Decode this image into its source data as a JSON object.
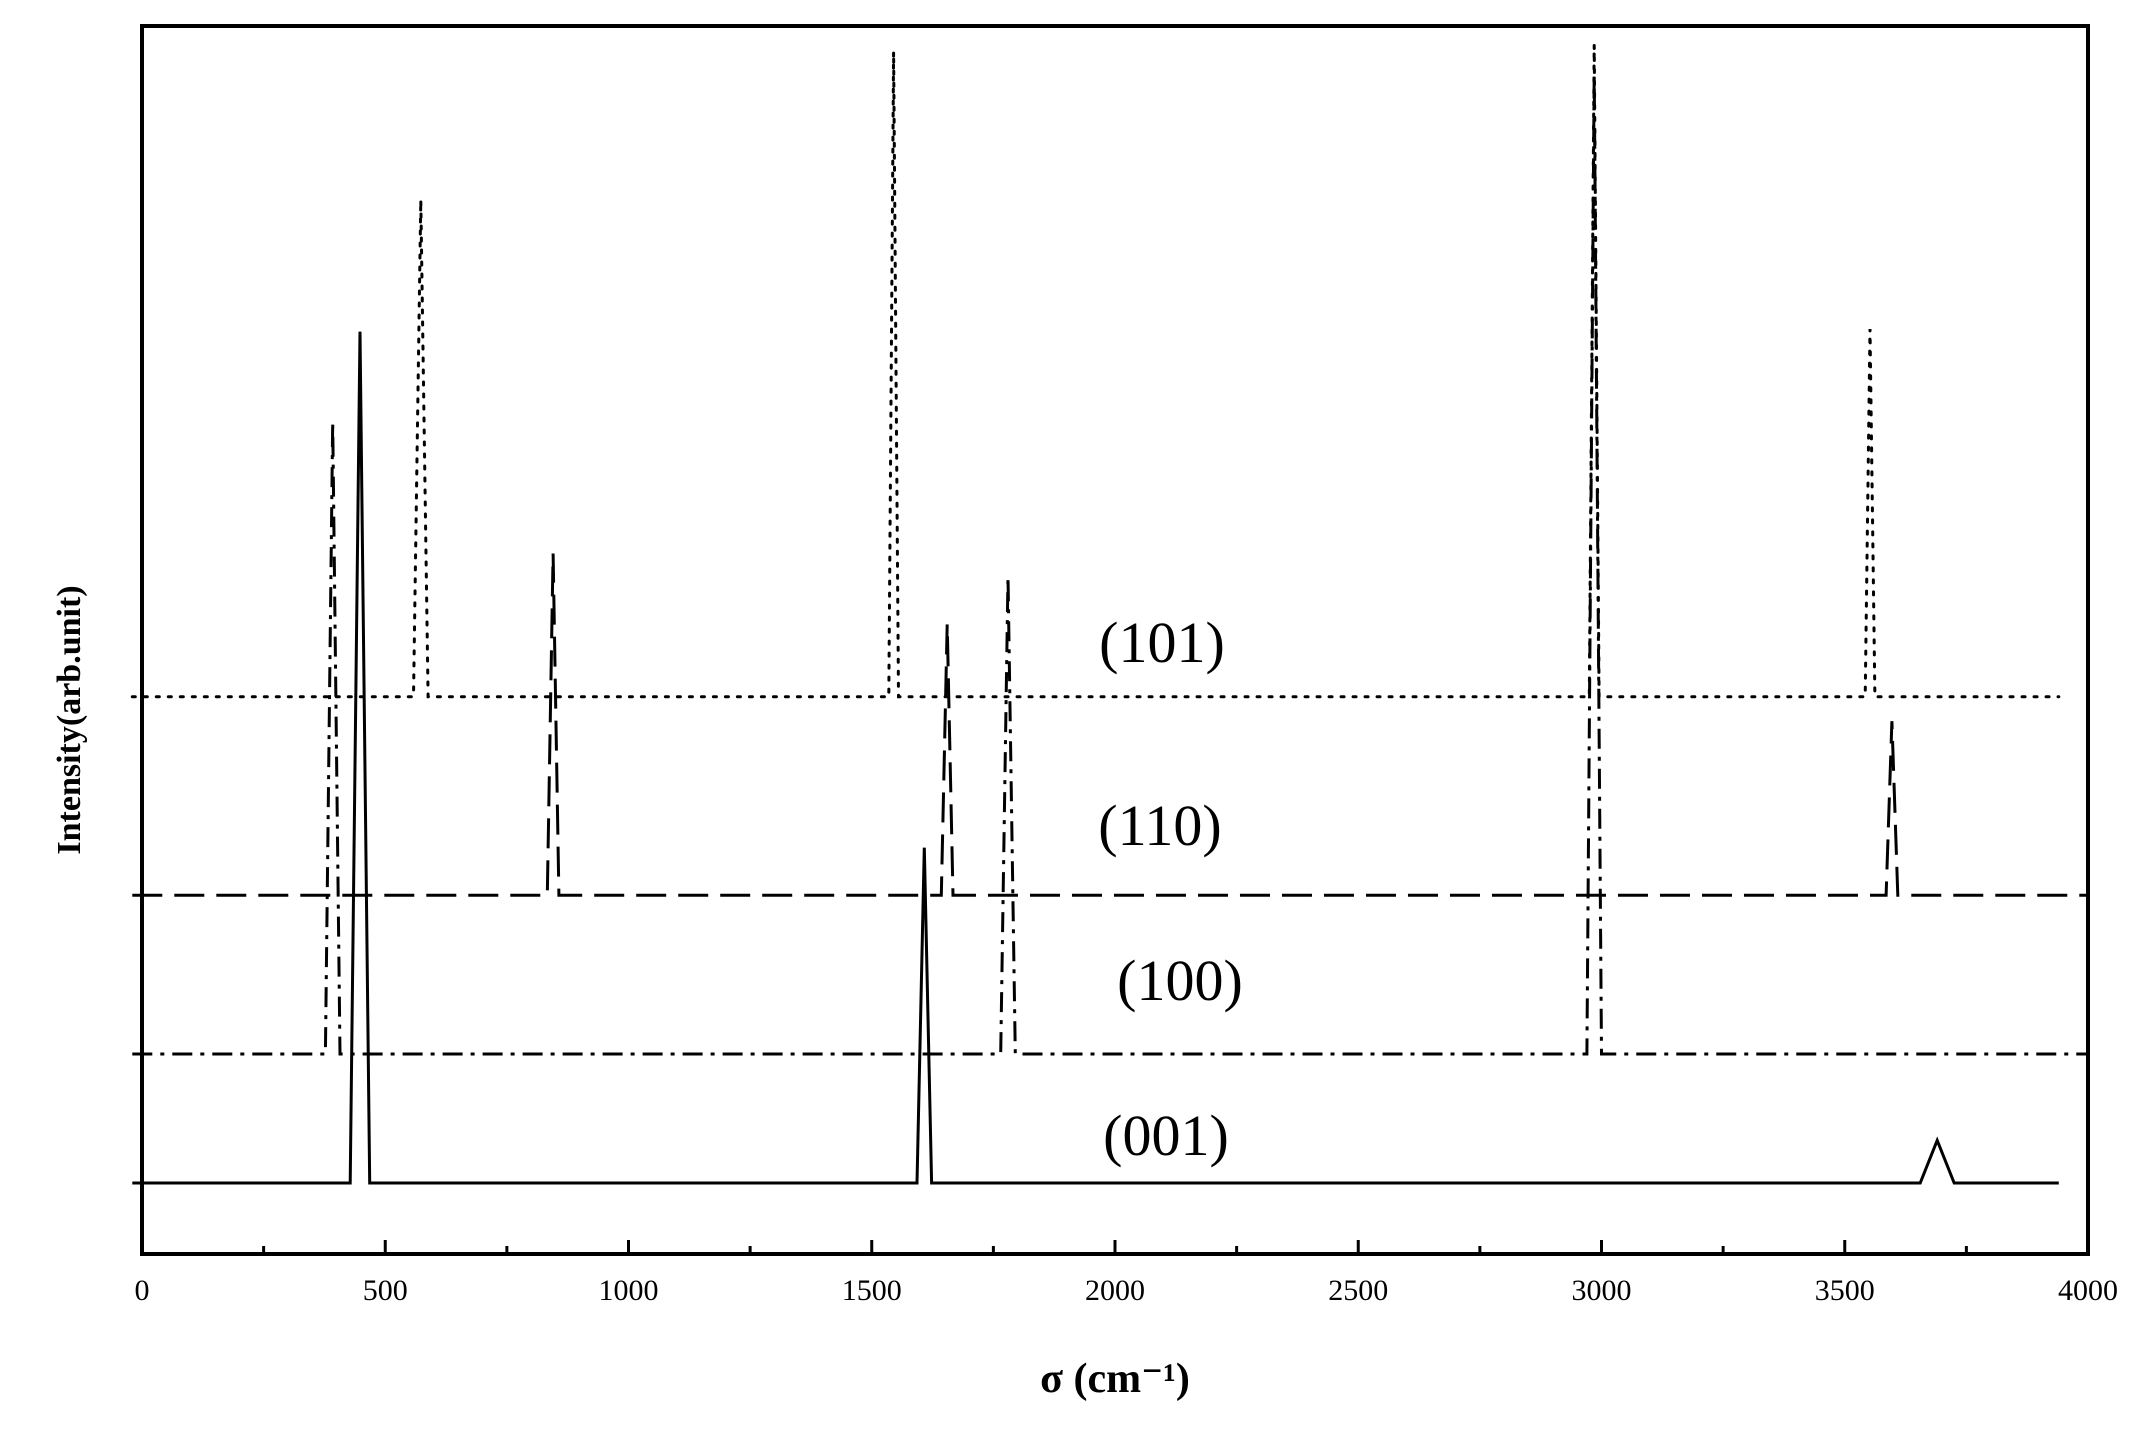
{
  "chart_data": {
    "type": "line",
    "title": "",
    "xlabel": "σ (cm⁻¹)",
    "ylabel": "Intensity(arb.unit)",
    "xlim": [
      0,
      4000
    ],
    "x_ticks": [
      0,
      500,
      1000,
      1500,
      2000,
      2500,
      3000,
      3500,
      4000
    ],
    "x_minor_step": 250,
    "y_axis_ticks": false,
    "grid": false,
    "legend": "none",
    "series": [
      {
        "name": "(001)",
        "style": "solid",
        "baseline": 0.0,
        "x_end": 3940,
        "peaks": [
          {
            "x": 448,
            "height": 6.6,
            "half_width": 20
          },
          {
            "x": 1608,
            "height": 2.6,
            "half_width": 15
          },
          {
            "x": 3690,
            "height": 0.33,
            "half_width": 35
          }
        ]
      },
      {
        "name": "(100)",
        "style": "dashdot",
        "baseline": 1.0,
        "x_end": 4000,
        "peaks": [
          {
            "x": 392,
            "height": 4.9,
            "half_width": 15
          },
          {
            "x": 1780,
            "height": 3.7,
            "half_width": 15
          },
          {
            "x": 2985,
            "height": 7.6,
            "half_width": 15
          }
        ]
      },
      {
        "name": "(110)",
        "style": "dashed",
        "baseline": 2.23,
        "x_end": 4000,
        "peaks": [
          {
            "x": 845,
            "height": 2.65,
            "half_width": 12
          },
          {
            "x": 1655,
            "height": 2.1,
            "half_width": 12
          },
          {
            "x": 3597,
            "height": 1.35,
            "half_width": 12
          }
        ]
      },
      {
        "name": "(101)",
        "style": "dotted",
        "baseline": 3.77,
        "x_end": 3940,
        "peaks": [
          {
            "x": 573,
            "height": 3.85,
            "half_width": 15
          },
          {
            "x": 1545,
            "height": 5.0,
            "half_width": 10
          },
          {
            "x": 2985,
            "height": 5.05,
            "half_width": 10
          },
          {
            "x": 3552,
            "height": 2.85,
            "half_width": 10
          }
        ]
      }
    ]
  }
}
